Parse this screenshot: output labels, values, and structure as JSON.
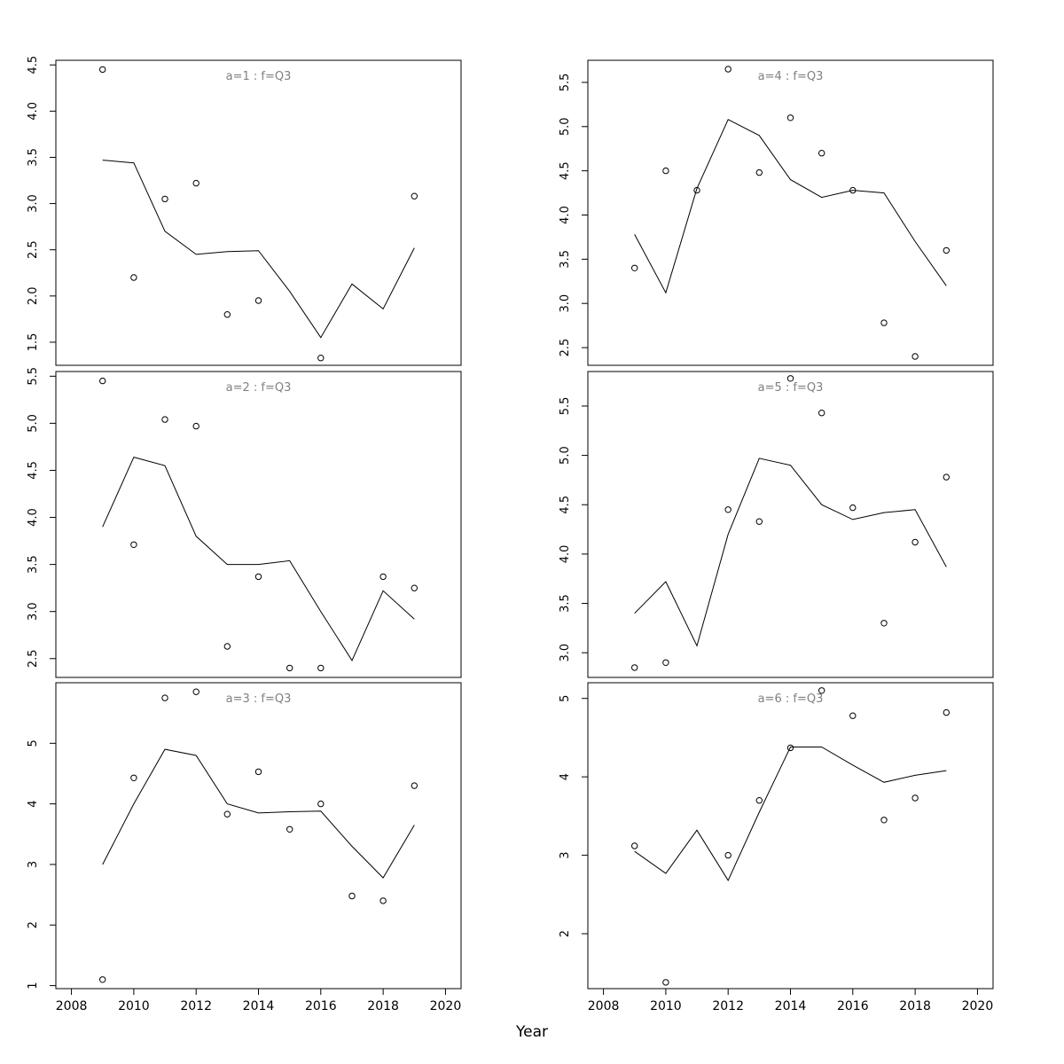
{
  "chart_data": {
    "type": "line+scatter",
    "xlabel": "Year",
    "xlim": [
      2007.5,
      2020.5
    ],
    "xticks": [
      2008,
      2010,
      2012,
      2014,
      2016,
      2018,
      2020
    ],
    "line_color": "#000000",
    "point_color": "#000000",
    "title_color": "#808080",
    "panels": [
      {
        "title": "a=1 : f=Q3",
        "ylim": [
          1.25,
          4.55
        ],
        "yticks": [
          "1.5",
          "2.0",
          "2.5",
          "3.0",
          "3.5",
          "4.0",
          "4.5"
        ],
        "line": {
          "x": [
            2009,
            2010,
            2011,
            2012,
            2013,
            2014,
            2015,
            2016,
            2017,
            2018,
            2019
          ],
          "y": [
            3.47,
            3.44,
            2.7,
            2.45,
            2.48,
            2.49,
            2.05,
            1.55,
            2.13,
            1.86,
            2.52
          ]
        },
        "points": {
          "x": [
            2009,
            2010,
            2011,
            2012,
            2013,
            2014,
            2016,
            2019
          ],
          "y": [
            4.45,
            2.2,
            3.05,
            3.22,
            1.8,
            1.95,
            1.33,
            3.08
          ]
        }
      },
      {
        "title": "a=2 : f=Q3",
        "ylim": [
          2.3,
          5.55
        ],
        "yticks": [
          "2.5",
          "3.0",
          "3.5",
          "4.0",
          "4.5",
          "5.0",
          "5.5"
        ],
        "line": {
          "x": [
            2009,
            2010,
            2011,
            2012,
            2013,
            2014,
            2015,
            2016,
            2017,
            2018,
            2019
          ],
          "y": [
            3.9,
            4.64,
            4.55,
            3.8,
            3.5,
            3.5,
            3.54,
            3.0,
            2.48,
            3.22,
            2.92
          ]
        },
        "points": {
          "x": [
            2009,
            2010,
            2011,
            2012,
            2013,
            2014,
            2015,
            2016,
            2018,
            2019
          ],
          "y": [
            5.45,
            3.71,
            5.04,
            4.97,
            2.63,
            3.37,
            2.4,
            2.4,
            3.37,
            3.25
          ]
        }
      },
      {
        "title": "a=3 : f=Q3",
        "ylim": [
          0.95,
          6.0
        ],
        "yticks": [
          "1",
          "2",
          "3",
          "4",
          "5"
        ],
        "line": {
          "x": [
            2009,
            2010,
            2011,
            2012,
            2013,
            2014,
            2015,
            2016,
            2017,
            2018,
            2019
          ],
          "y": [
            3.0,
            4.0,
            4.9,
            4.8,
            4.0,
            3.85,
            3.87,
            3.88,
            3.3,
            2.78,
            3.65
          ]
        },
        "points": {
          "x": [
            2009,
            2010,
            2011,
            2012,
            2013,
            2014,
            2015,
            2016,
            2017,
            2018,
            2019
          ],
          "y": [
            1.1,
            4.43,
            5.75,
            5.85,
            3.83,
            4.53,
            3.58,
            4.0,
            2.48,
            2.4,
            4.3
          ]
        }
      },
      {
        "title": "a=4 : f=Q3",
        "ylim": [
          2.3,
          5.75
        ],
        "yticks": [
          "2.5",
          "3.0",
          "3.5",
          "4.0",
          "4.5",
          "5.0",
          "5.5"
        ],
        "line": {
          "x": [
            2009,
            2010,
            2011,
            2012,
            2013,
            2014,
            2015,
            2016,
            2017,
            2018,
            2019
          ],
          "y": [
            3.78,
            3.12,
            4.3,
            5.08,
            4.9,
            4.4,
            4.2,
            4.28,
            4.25,
            3.7,
            3.2
          ]
        },
        "points": {
          "x": [
            2009,
            2010,
            2011,
            2012,
            2013,
            2014,
            2015,
            2016,
            2017,
            2018,
            2019
          ],
          "y": [
            3.4,
            4.5,
            4.28,
            5.65,
            4.48,
            5.1,
            4.7,
            4.28,
            2.78,
            2.4,
            3.6
          ]
        }
      },
      {
        "title": "a=5 : f=Q3",
        "ylim": [
          2.75,
          5.85
        ],
        "yticks": [
          "3.0",
          "3.5",
          "4.0",
          "4.5",
          "5.0",
          "5.5"
        ],
        "line": {
          "x": [
            2009,
            2010,
            2011,
            2012,
            2013,
            2014,
            2015,
            2016,
            2017,
            2018,
            2019
          ],
          "y": [
            3.4,
            3.72,
            3.07,
            4.2,
            4.97,
            4.9,
            4.5,
            4.35,
            4.42,
            4.45,
            3.87
          ]
        },
        "points": {
          "x": [
            2009,
            2010,
            2012,
            2013,
            2014,
            2015,
            2016,
            2017,
            2018,
            2019
          ],
          "y": [
            2.85,
            2.9,
            4.45,
            4.33,
            5.78,
            5.43,
            4.47,
            3.3,
            4.12,
            4.78
          ]
        }
      },
      {
        "title": "a=6 : f=Q3",
        "ylim": [
          1.3,
          5.2
        ],
        "yticks": [
          "2",
          "3",
          "4",
          "5"
        ],
        "line": {
          "x": [
            2009,
            2010,
            2011,
            2012,
            2013,
            2014,
            2015,
            2016,
            2017,
            2018,
            2019
          ],
          "y": [
            3.05,
            2.77,
            3.32,
            2.68,
            3.55,
            4.38,
            4.38,
            4.15,
            3.93,
            4.02,
            4.08
          ]
        },
        "points": {
          "x": [
            2009,
            2010,
            2012,
            2013,
            2014,
            2015,
            2016,
            2017,
            2018,
            2019
          ],
          "y": [
            3.12,
            1.38,
            3.0,
            3.7,
            4.37,
            5.1,
            4.78,
            3.45,
            3.73,
            4.82
          ]
        }
      }
    ]
  }
}
